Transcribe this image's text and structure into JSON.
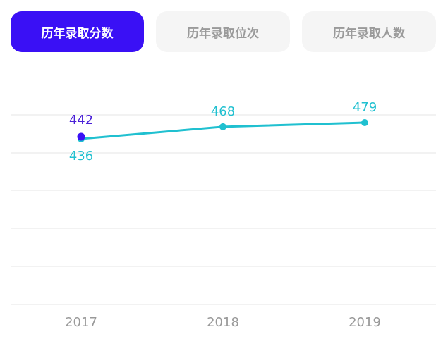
{
  "tabs": [
    {
      "label": "历年录取分数",
      "active": true
    },
    {
      "label": "历年录取位次",
      "active": false
    },
    {
      "label": "历年录取人数",
      "active": false
    }
  ],
  "colors": {
    "accent": "#3a10f5",
    "series_primary": "#20c0d0",
    "series_secondary": "#4a20d8",
    "grid": "#eeeeee",
    "axis_label": "#999999"
  },
  "chart_data": {
    "type": "line",
    "title": "",
    "categories": [
      "2017",
      "2018",
      "2019"
    ],
    "series": [
      {
        "name": "series-cyan",
        "color": "#20c0d0",
        "values": [
          436,
          468,
          479
        ]
      },
      {
        "name": "series-purple",
        "color": "#3a10f5",
        "values": [
          442,
          null,
          null
        ]
      }
    ],
    "xlabel": "",
    "ylabel": "",
    "grid": true,
    "gridlines": 6,
    "legend": "none"
  }
}
